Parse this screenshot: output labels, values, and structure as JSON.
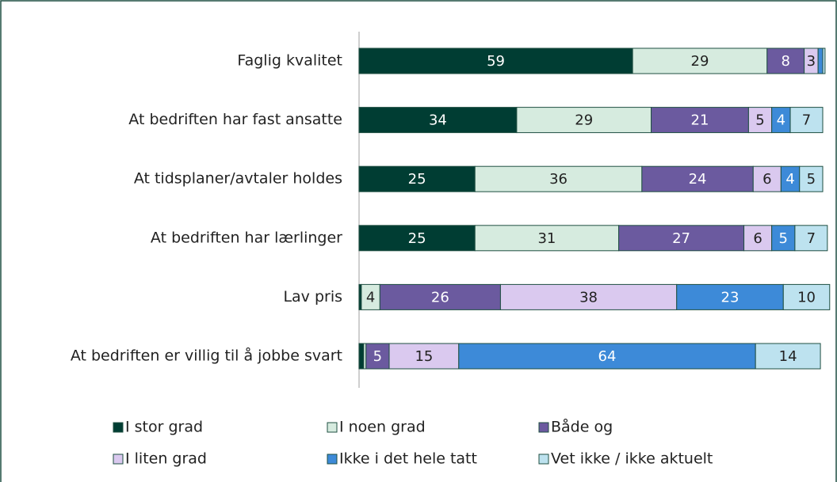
{
  "chart_data": {
    "type": "stacked-bar-horizontal",
    "categories": [
      "Faglig kvalitet",
      "At bedriften har fast ansatte",
      "At tidsplaner/avtaler holdes",
      "At bedriften har lærlinger",
      "Lav pris",
      "At bedriften er villig til å jobbe svart"
    ],
    "series": [
      {
        "name": "I stor grad",
        "color": "#003d33",
        "values": [
          59,
          34,
          25,
          25,
          0.5,
          1
        ]
      },
      {
        "name": "I noen grad",
        "color": "#d6ebdf",
        "values": [
          29,
          29,
          36,
          31,
          4,
          0.5
        ]
      },
      {
        "name": "Både og",
        "color": "#6b5a9f",
        "values": [
          8,
          21,
          24,
          27,
          26,
          5
        ]
      },
      {
        "name": "I liten grad",
        "color": "#dac9ef",
        "values": [
          3,
          5,
          6,
          6,
          38,
          15
        ]
      },
      {
        "name": "Ikke i det hele tatt",
        "color": "#3d8ad8",
        "values": [
          1,
          4,
          4,
          5,
          23,
          64
        ]
      },
      {
        "name": "Vet ikke / ikke aktuelt",
        "color": "#bde2ef",
        "values": [
          0.5,
          7,
          5,
          7,
          10,
          14
        ]
      }
    ],
    "legend": "bottom"
  }
}
